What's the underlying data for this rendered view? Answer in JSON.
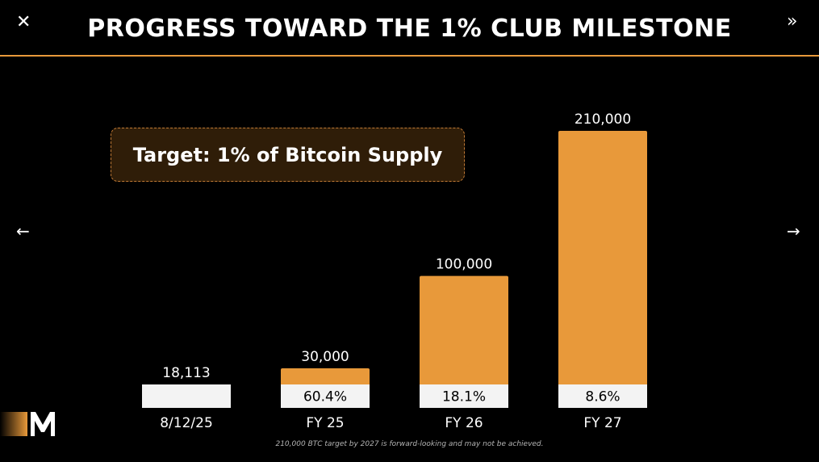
{
  "header": {
    "title": "PROGRESS TOWARD THE 1% CLUB MILESTONE",
    "close_icon": "close-icon",
    "expand_icon": "double-chevron-right-icon",
    "close_glyph": "✕",
    "expand_glyph": "»"
  },
  "nav": {
    "prev_glyph": "←",
    "next_glyph": "→",
    "prev_icon": "arrow-left-icon",
    "next_icon": "arrow-right-icon"
  },
  "callout": {
    "text": "Target: 1% of Bitcoin Supply"
  },
  "footnote": "210,000 BTC target by 2027 is forward-looking and may not be achieved.",
  "colors": {
    "accent": "#e8993a",
    "bar_fill": "#e8993a",
    "progress_fill": "#f3f3f3",
    "background": "#000000"
  },
  "chart_data": {
    "type": "bar",
    "categories": [
      "8/12/25",
      "FY 25",
      "FY 26",
      "FY 27"
    ],
    "values": [
      18113,
      30000,
      100000,
      210000
    ],
    "value_labels": [
      "18,113",
      "30,000",
      "100,000",
      "210,000"
    ],
    "progress_value": 18113,
    "progress_labels": [
      "",
      "60.4%",
      "18.1%",
      "8.6%"
    ],
    "ylim": [
      0,
      210000
    ],
    "grid": false,
    "title": "",
    "xlabel": "",
    "ylabel": ""
  }
}
